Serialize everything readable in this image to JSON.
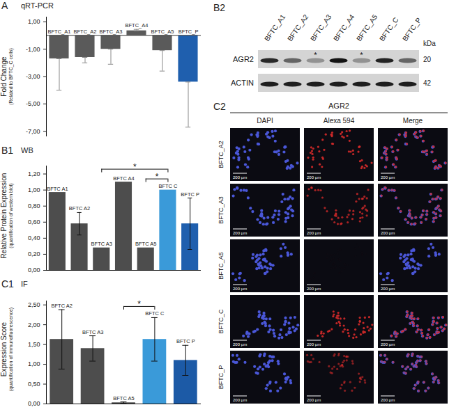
{
  "chart_data": [
    {
      "type": "bar",
      "panel": "A",
      "title": "qRT-PCR",
      "ylabel": "Fold Change",
      "ylabel_note": "(Related to BFTC_C cells)",
      "categories": [
        "BFTC_A1",
        "BFTC_A2",
        "BFTC_A3",
        "BFTC_A4",
        "BFTC_A5",
        "BFTC_P"
      ],
      "values": [
        -1.7,
        -1.6,
        -1.0,
        0.35,
        -1.1,
        -3.4
      ],
      "colors": [
        "#5a5a5a",
        "#5a5a5a",
        "#5a5a5a",
        "#5a5a5a",
        "#5a5a5a",
        "#1f5fae"
      ],
      "error_bars": [
        [
          -4.0,
          -1.7
        ],
        [
          -2.0,
          -1.6
        ],
        [
          -2.1,
          -1.0
        ],
        [
          0.35,
          0.45
        ],
        [
          -2.6,
          -1.1
        ],
        [
          -6.7,
          -3.4
        ]
      ],
      "ylim": [
        -7.4,
        1.35
      ],
      "yticks": [
        {
          "value": 1,
          "label": "1,00"
        },
        {
          "value": -1,
          "label": "-1,00"
        },
        {
          "value": -3,
          "label": "-3,00"
        },
        {
          "value": -5,
          "label": "-5,00"
        },
        {
          "value": -7,
          "label": "-7,00"
        }
      ],
      "tick_labels": "y"
    },
    {
      "type": "bar",
      "panel": "B1",
      "title": "WB",
      "ylabel": "Relative Protein Expression",
      "ylabel_note": "(quantification of western blot)",
      "categories": [
        "BFTC A1",
        "BFTC A2",
        "BFTC A3",
        "BFTC A4",
        "BFTC A5",
        "BFTC C",
        "BFTC P"
      ],
      "values": [
        0.97,
        0.58,
        0.28,
        1.1,
        0.28,
        1.0,
        0.58
      ],
      "colors": [
        "#4d4d4d",
        "#4d4d4d",
        "#4d4d4d",
        "#4d4d4d",
        "#4d4d4d",
        "#3a9ad9",
        "#1f5fae"
      ],
      "error_bars": [
        null,
        [
          0.44,
          0.72
        ],
        null,
        null,
        null,
        null,
        [
          0.26,
          0.9
        ]
      ],
      "ylim": [
        0,
        1.3
      ],
      "yticks": [
        {
          "value": 0,
          "label": "0,00"
        },
        {
          "value": 0.2,
          "label": "0,20"
        },
        {
          "value": 0.4,
          "label": "0,40"
        },
        {
          "value": 0.6,
          "label": "0,60"
        },
        {
          "value": 0.8,
          "label": "0,80"
        },
        {
          "value": 1.0,
          "label": "1,00"
        },
        {
          "value": 1.2,
          "label": "1,20"
        }
      ],
      "significance": [
        {
          "from": "BFTC A3",
          "to": "BFTC C",
          "label": "*"
        },
        {
          "from": "BFTC A5",
          "to": "BFTC C",
          "label": "*"
        }
      ],
      "tick_labels": "y"
    },
    {
      "type": "bar",
      "panel": "C1",
      "title": "IF",
      "ylabel": "Expression Score",
      "ylabel_note": "(quantification of immunofluorescence)",
      "categories": [
        "BFTC A2",
        "BFTC A3",
        "BFTC A5",
        "BFTC C",
        "BFTC P"
      ],
      "values": [
        1.63,
        1.4,
        0.03,
        1.63,
        1.1
      ],
      "colors": [
        "#4d4d4d",
        "#4d4d4d",
        "#4d4d4d",
        "#3a9ad9",
        "#1c5aa6"
      ],
      "error_bars": [
        [
          0.88,
          2.38
        ],
        [
          1.08,
          1.72
        ],
        [
          0.01,
          0.05
        ],
        [
          1.08,
          2.18
        ],
        [
          0.72,
          1.48
        ]
      ],
      "ylim": [
        0,
        2.6
      ],
      "yticks": [
        {
          "value": 0,
          "label": "0,00"
        },
        {
          "value": 0.5,
          "label": "0,50"
        },
        {
          "value": 1.0,
          "label": "1,00"
        },
        {
          "value": 1.5,
          "label": "1,50"
        },
        {
          "value": 2.0,
          "label": "2,00"
        },
        {
          "value": 2.5,
          "label": "2,50"
        }
      ],
      "significance": [
        {
          "from": "BFTC A5",
          "to": "BFTC C",
          "label": "*"
        }
      ],
      "tick_labels": "y"
    }
  ],
  "western_blot": {
    "panel": "B2",
    "lanes": [
      "BFTC_A1",
      "BFTC_A2",
      "BFTC_A3",
      "BFTC_A4",
      "BFTC_A5",
      "BFTC_C",
      "BFTC_P"
    ],
    "rows": [
      {
        "name": "AGR2",
        "kda": "20"
      },
      {
        "name": "ACTIN",
        "kda": "42"
      }
    ],
    "unit": "kDa",
    "asterisk": "*",
    "asterisk_lanes": [
      "BFTC_A3",
      "BFTC_A5"
    ]
  },
  "immunofluorescence": {
    "panel": "C2",
    "title": "AGR2",
    "columns": [
      "DAPI",
      "Alexa 594",
      "Merge"
    ],
    "rows": [
      "BFTC_A2",
      "BFTC_A3",
      "BFTC_A5",
      "BFTC_C",
      "BFTC_P"
    ],
    "scale_bar": "200 µm"
  }
}
